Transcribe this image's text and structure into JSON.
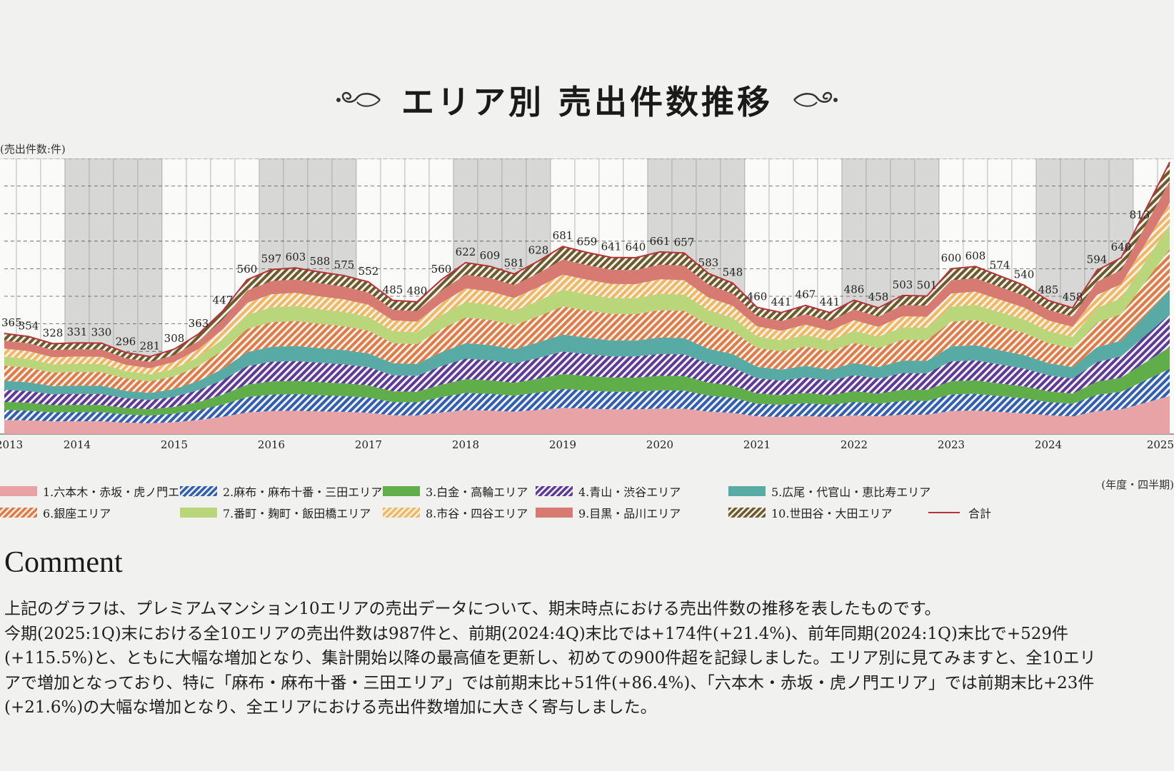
{
  "title": "エリア別 売出件数推移",
  "y_unit_label": "(売出件数:件)",
  "x_unit_label": "(年度・四半期)",
  "chart_data": {
    "type": "area",
    "stacked": true,
    "title": "エリア別 売出件数推移",
    "ylabel": "(売出件数:件)",
    "xlabel": "(年度・四半期)",
    "year_labels": [
      "2013",
      "2014",
      "2015",
      "2016",
      "2017",
      "2018",
      "2019",
      "2020",
      "2021",
      "2022",
      "2023",
      "2024",
      "2025"
    ],
    "totals": [
      365,
      354,
      328,
      331,
      330,
      296,
      281,
      308,
      363,
      447,
      560,
      597,
      603,
      588,
      575,
      552,
      485,
      480,
      560,
      622,
      609,
      581,
      628,
      681,
      659,
      641,
      640,
      661,
      657,
      583,
      548,
      460,
      441,
      467,
      441,
      486,
      458,
      503,
      501,
      600,
      608,
      574,
      540,
      485,
      458,
      594,
      640,
      813,
      987
    ],
    "total_labels": [
      "365",
      "354",
      "328",
      "331",
      "330",
      "296",
      "281",
      "308",
      "363",
      "447",
      "560",
      "597",
      "603",
      "588",
      "575",
      "552",
      "485",
      "480",
      "560",
      "622",
      "609",
      "581",
      "628",
      "681",
      "659",
      "641",
      "640",
      "661",
      "657",
      "583",
      "548",
      "460",
      "441",
      "467",
      "441",
      "486",
      "458",
      "503",
      "501",
      "600",
      "608",
      "574",
      "540",
      "485",
      "458",
      "594",
      "640",
      "813",
      "987"
    ],
    "area_shares": [
      0.14,
      0.1,
      0.08,
      0.12,
      0.09,
      0.15,
      0.09,
      0.08,
      0.08,
      0.07
    ],
    "series": [
      {
        "name": "1.六本木・赤坂・虎ノ門エリア",
        "color": "#e8a3a6",
        "pattern": "solid"
      },
      {
        "name": "2.麻布・麻布十番・三田エリア",
        "color": "#2f5fb4",
        "pattern": "hatch"
      },
      {
        "name": "3.白金・高輪エリア",
        "color": "#5fae4a",
        "pattern": "solid"
      },
      {
        "name": "4.青山・渋谷エリア",
        "color": "#5b3a9a",
        "pattern": "hatch"
      },
      {
        "name": "5.広尾・代官山・恵比寿エリア",
        "color": "#58aaa4",
        "pattern": "solid"
      },
      {
        "name": "6.銀座エリア",
        "color": "#e07a46",
        "pattern": "hatch"
      },
      {
        "name": "7.番町・麹町・飯田橋エリア",
        "color": "#b9d67a",
        "pattern": "solid"
      },
      {
        "name": "8.市谷・四谷エリア",
        "color": "#f0b860",
        "pattern": "hatch"
      },
      {
        "name": "9.目黒・品川エリア",
        "color": "#d77a72",
        "pattern": "solid"
      },
      {
        "name": "10.世田谷・大田エリア",
        "color": "#6b5a2e",
        "pattern": "hatch"
      },
      {
        "name": "合計",
        "color": "#b8333a",
        "pattern": "line"
      }
    ],
    "ylim": [
      0,
      1000
    ],
    "grid": true
  },
  "comment": {
    "heading": "Comment",
    "lines": [
      "上記のグラフは、プレミアムマンション10エリアの売出データについて、期末時点における売出件数の推移を表したものです。",
      "今期(2025:1Q)末における全10エリアの売出件数は987件と、前期(2024:4Q)末比では+174件(+21.4%)、前年同期(2024:1Q)末比で+529件",
      "(+115.5%)と、ともに大幅な増加となり、集計開始以降の最高値を更新し、初めての900件超を記録しました。エリア別に見てみますと、全10エリ",
      "アで増加となっており、特に「麻布・麻布十番・三田エリア」では前期末比+51件(+86.4%)、「六本木・赤坂・虎ノ門エリア」では前期末比+23件",
      "(+21.6%)の大幅な増加となり、全エリアにおける売出件数増加に大きく寄与しました。"
    ]
  }
}
